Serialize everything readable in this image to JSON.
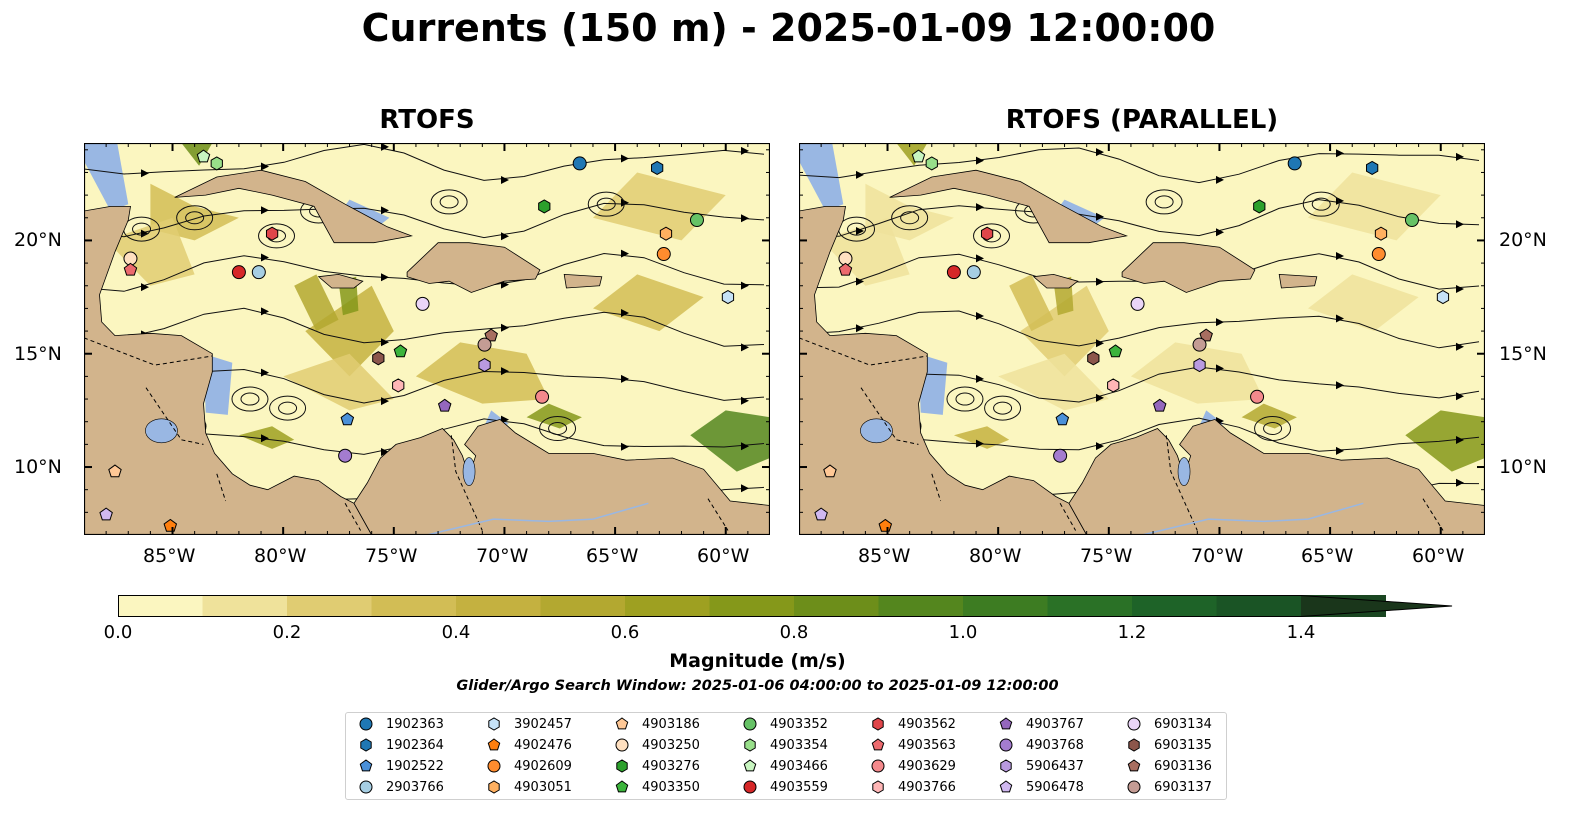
{
  "title": "Currents (150 m) - 2025-01-09 12:00:00",
  "panels": [
    {
      "title": "RTOFS"
    },
    {
      "title": "RTOFS (PARALLEL)"
    }
  ],
  "axes": {
    "lon_ticks": [
      "85°W",
      "80°W",
      "75°W",
      "70°W",
      "65°W",
      "60°W"
    ],
    "lat_ticks": [
      "20°N",
      "15°N",
      "10°N"
    ]
  },
  "colorbar": {
    "label": "Magnitude (m/s)",
    "ticks": [
      "0.0",
      "0.2",
      "0.4",
      "0.6",
      "0.8",
      "1.0",
      "1.2",
      "1.4"
    ],
    "colors": [
      "#fbf6c0",
      "#efe29b",
      "#e0cc72",
      "#d2bd55",
      "#c4b140",
      "#b3a830",
      "#9ea021",
      "#85981a",
      "#6d8e1a",
      "#54861e",
      "#3d7c22",
      "#2a7126",
      "#1e6328",
      "#1a5425",
      "#1a4621",
      "#1a361b"
    ]
  },
  "search_window": "Glider/Argo Search Window: 2025-01-06 04:00:00 to 2025-01-09 12:00:00",
  "legend": [
    {
      "label": "1902363",
      "marker": "circle",
      "color": "#1f77b4"
    },
    {
      "label": "1902364",
      "marker": "hexagon",
      "color": "#1f77b4"
    },
    {
      "label": "1902522",
      "marker": "pentagon",
      "color": "#4a90d9"
    },
    {
      "label": "2903766",
      "marker": "circle",
      "color": "#a6cee3"
    },
    {
      "label": "3902457",
      "marker": "hexagon",
      "color": "#c6e2f7"
    },
    {
      "label": "4902476",
      "marker": "pentagon",
      "color": "#ff7f0e"
    },
    {
      "label": "4902609",
      "marker": "circle",
      "color": "#ff8c2e"
    },
    {
      "label": "4903051",
      "marker": "hexagon",
      "color": "#ffb060"
    },
    {
      "label": "4903186",
      "marker": "pentagon",
      "color": "#ffc896"
    },
    {
      "label": "4903250",
      "marker": "circle",
      "color": "#ffe0c0"
    },
    {
      "label": "4903276",
      "marker": "hexagon",
      "color": "#2ca02c"
    },
    {
      "label": "4903350",
      "marker": "pentagon",
      "color": "#3cb43c"
    },
    {
      "label": "4903352",
      "marker": "circle",
      "color": "#66c266"
    },
    {
      "label": "4903354",
      "marker": "hexagon",
      "color": "#98df8a"
    },
    {
      "label": "4903466",
      "marker": "pentagon",
      "color": "#c8f5c0"
    },
    {
      "label": "4903559",
      "marker": "circle",
      "color": "#d62728"
    },
    {
      "label": "4903562",
      "marker": "hexagon",
      "color": "#e0464a"
    },
    {
      "label": "4903563",
      "marker": "pentagon",
      "color": "#ec6a6e"
    },
    {
      "label": "4903629",
      "marker": "circle",
      "color": "#f4898c"
    },
    {
      "label": "4903766",
      "marker": "hexagon",
      "color": "#ffb6b6"
    },
    {
      "label": "4903767",
      "marker": "pentagon",
      "color": "#9467bd"
    },
    {
      "label": "4903768",
      "marker": "circle",
      "color": "#a47ccf"
    },
    {
      "label": "5906437",
      "marker": "hexagon",
      "color": "#b99ae0"
    },
    {
      "label": "5906478",
      "marker": "pentagon",
      "color": "#d0b8f0"
    },
    {
      "label": "6903134",
      "marker": "circle",
      "color": "#ead5f7"
    },
    {
      "label": "6903135",
      "marker": "hexagon",
      "color": "#8c564b"
    },
    {
      "label": "6903136",
      "marker": "pentagon",
      "color": "#a86e60"
    },
    {
      "label": "6903137",
      "marker": "circle",
      "color": "#c49c94"
    }
  ],
  "chart_data": {
    "type": "heatmap",
    "title": "Currents (150 m) - 2025-01-09 12:00:00",
    "lon_range": [
      -89,
      -58
    ],
    "lat_range": [
      7,
      24.3
    ],
    "variable": "Magnitude (m/s)",
    "vmin": 0.0,
    "vmax": 1.5,
    "colorbar_extend": "max",
    "panels": [
      "RTOFS",
      "RTOFS (PARALLEL)"
    ],
    "floats": [
      {
        "id": "1902363",
        "lon": -66.6,
        "lat": 23.4
      },
      {
        "id": "1902364",
        "lon": -63.1,
        "lat": 23.2
      },
      {
        "id": "1902522",
        "lon": -77.1,
        "lat": 12.1
      },
      {
        "id": "2903766",
        "lon": -81.1,
        "lat": 18.6
      },
      {
        "id": "3902457",
        "lon": -59.9,
        "lat": 17.5
      },
      {
        "id": "4902476",
        "lon": -85.1,
        "lat": 7.4
      },
      {
        "id": "4902609",
        "lon": -62.8,
        "lat": 19.4
      },
      {
        "id": "4903051",
        "lon": -62.7,
        "lat": 20.3
      },
      {
        "id": "4903186",
        "lon": -87.6,
        "lat": 9.8
      },
      {
        "id": "4903250",
        "lon": -86.9,
        "lat": 19.2
      },
      {
        "id": "4903276",
        "lon": -68.2,
        "lat": 21.5
      },
      {
        "id": "4903350",
        "lon": -74.7,
        "lat": 15.1
      },
      {
        "id": "4903352",
        "lon": -61.3,
        "lat": 20.9
      },
      {
        "id": "4903354",
        "lon": -83.0,
        "lat": 23.4
      },
      {
        "id": "4903466",
        "lon": -83.6,
        "lat": 23.7
      },
      {
        "id": "4903559",
        "lon": -82.0,
        "lat": 18.6
      },
      {
        "id": "4903562",
        "lon": -80.5,
        "lat": 20.3
      },
      {
        "id": "4903563",
        "lon": -86.9,
        "lat": 18.7
      },
      {
        "id": "4903629",
        "lon": -68.3,
        "lat": 13.1
      },
      {
        "id": "4903766",
        "lon": -74.8,
        "lat": 13.6
      },
      {
        "id": "4903767",
        "lon": -72.7,
        "lat": 12.7
      },
      {
        "id": "4903768",
        "lon": -77.2,
        "lat": 10.5
      },
      {
        "id": "5906437",
        "lon": -70.9,
        "lat": 14.5
      },
      {
        "id": "5906478",
        "lon": -88.0,
        "lat": 7.9
      },
      {
        "id": "6903134",
        "lon": -73.7,
        "lat": 17.2
      },
      {
        "id": "6903135",
        "lon": -75.7,
        "lat": 14.8
      },
      {
        "id": "6903136",
        "lon": -70.6,
        "lat": 15.8
      },
      {
        "id": "6903137",
        "lon": -70.9,
        "lat": 15.4
      }
    ]
  }
}
